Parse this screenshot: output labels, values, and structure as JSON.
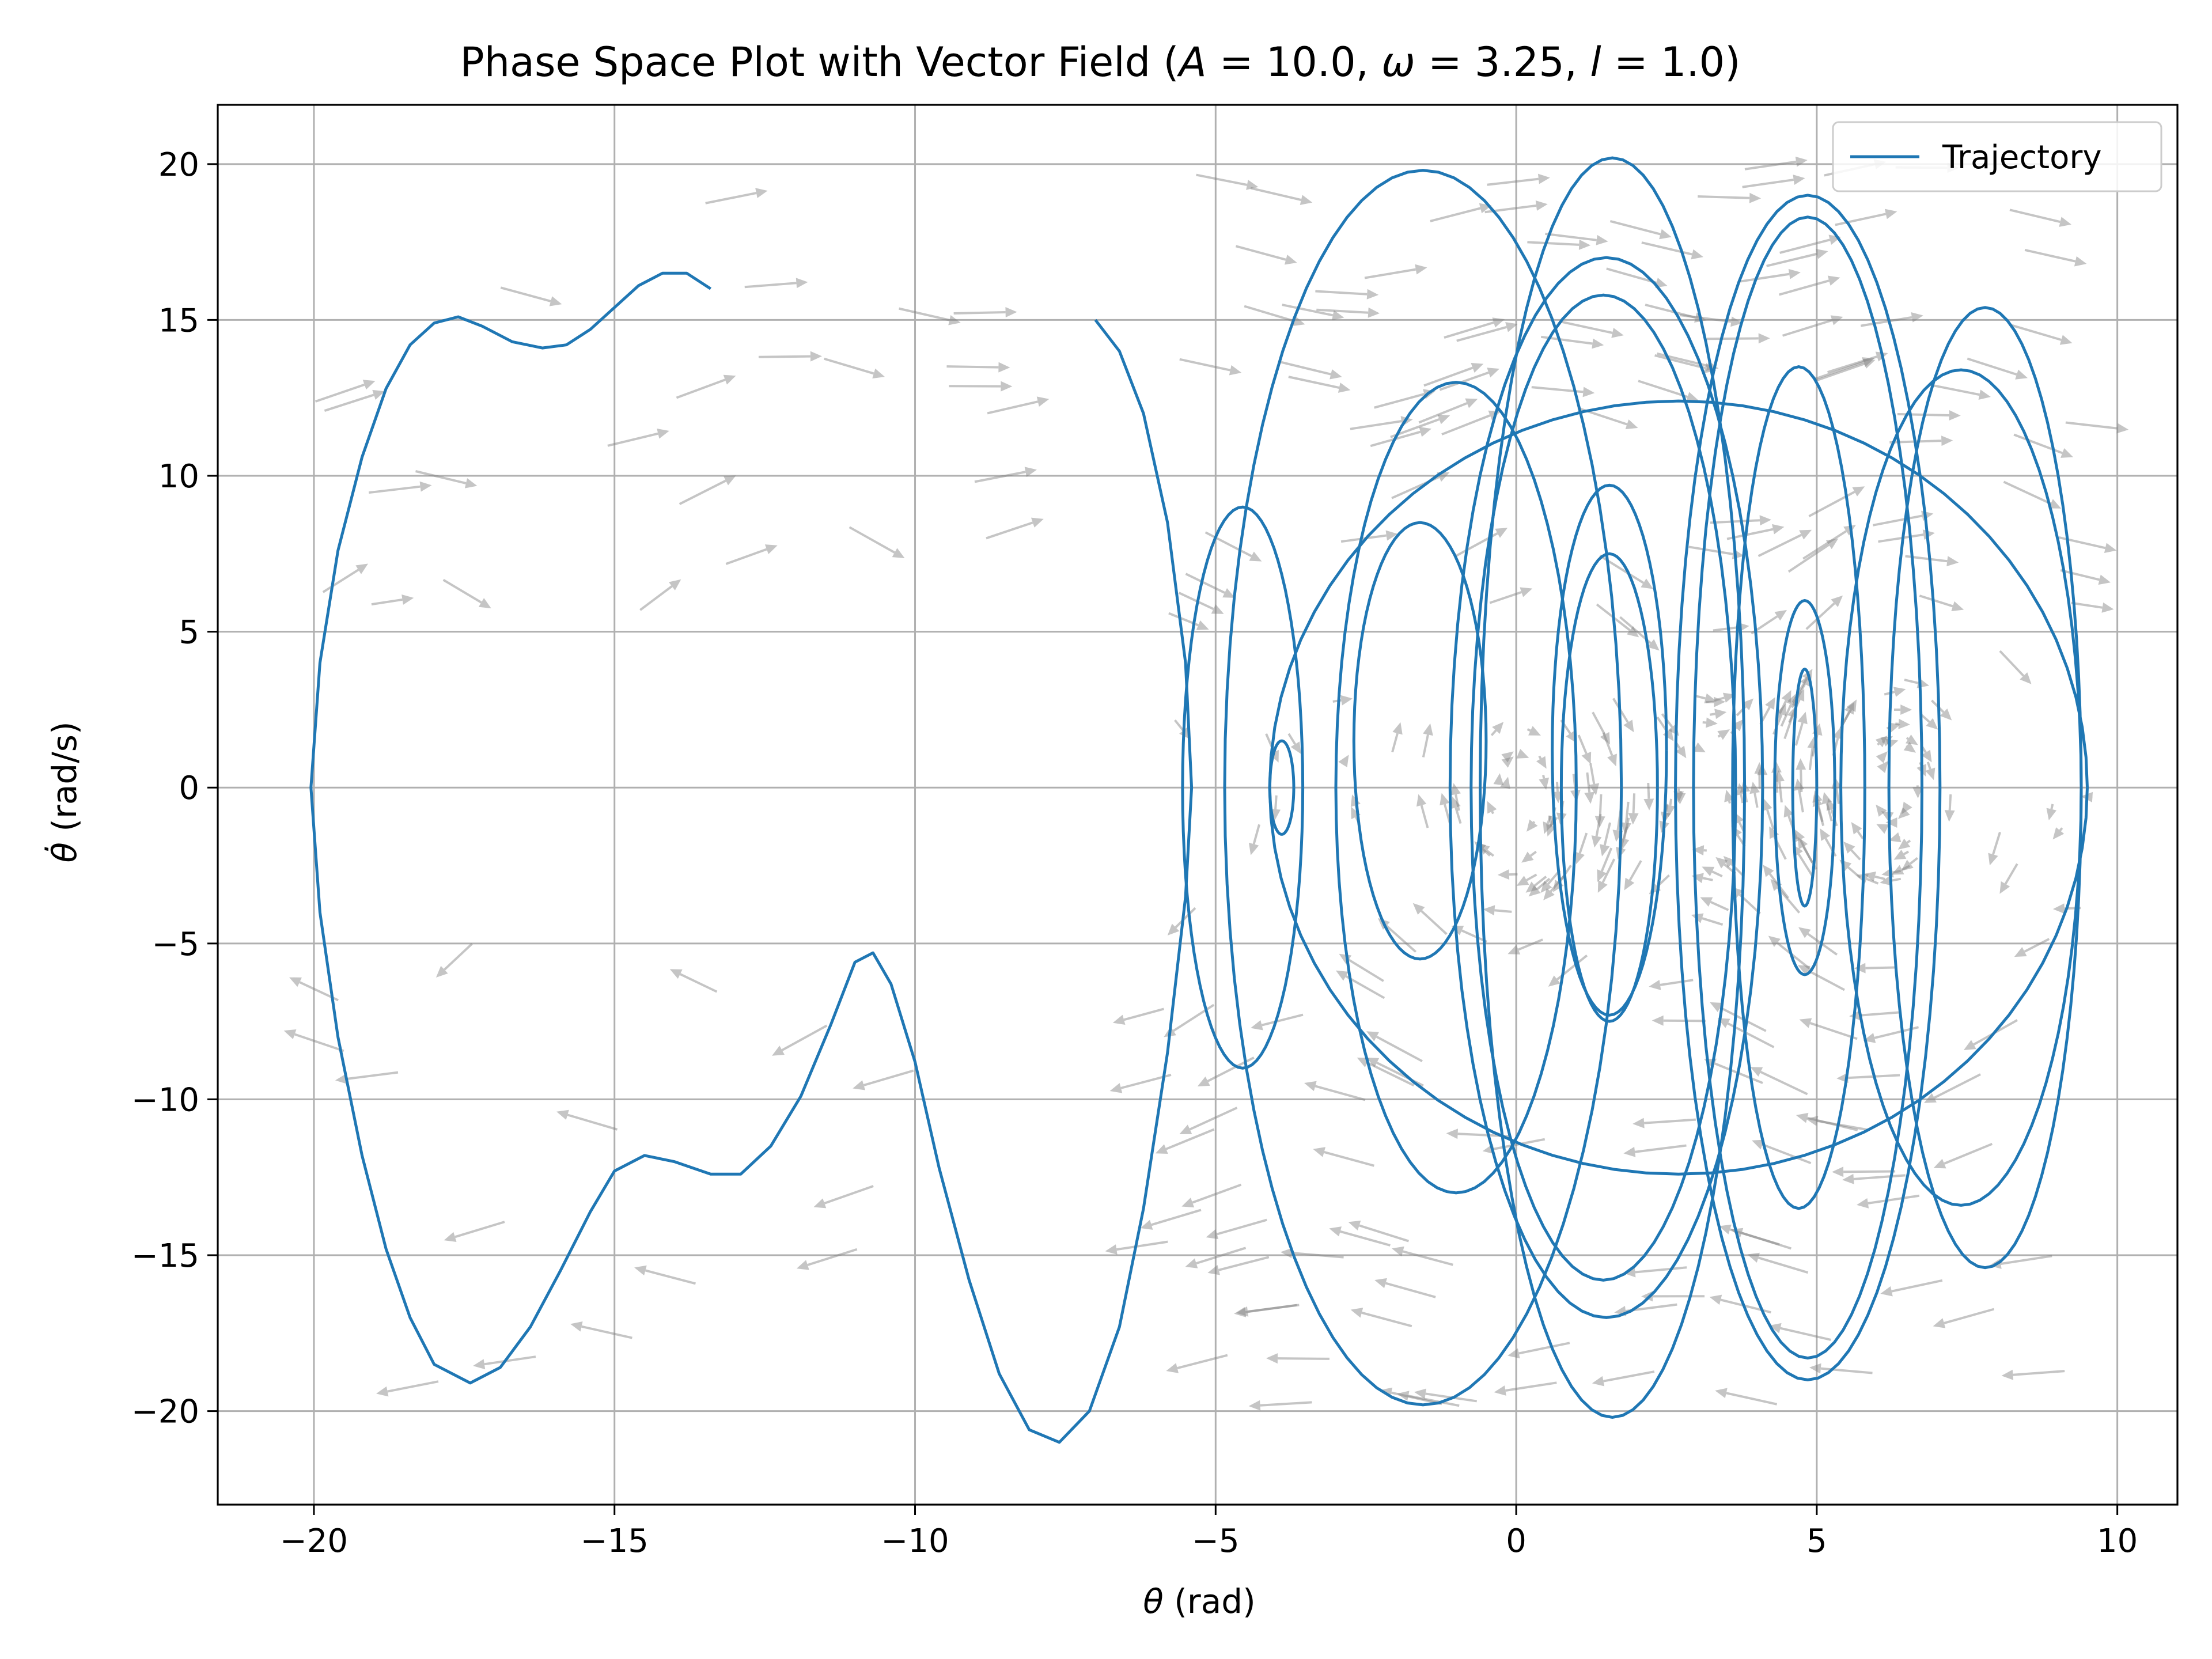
{
  "chart_data": {
    "type": "line",
    "title": "Phase Space Plot with Vector Field (A = 10.0, ω = 3.25, l = 1.0)",
    "title_parts": {
      "prefix": "Phase Space Plot with Vector Field (",
      "A_sym": "A",
      "A_val": " = 10.0, ",
      "w_sym": "ω",
      "w_val": " = 3.25, ",
      "l_sym": "l",
      "l_val": " = 1.0)"
    },
    "xlabel": "θ (rad)",
    "xlabel_parts": {
      "sym": "θ",
      "unit": " (rad)"
    },
    "ylabel": "θ̇ (rad/s)",
    "ylabel_parts": {
      "sym": "θ̇",
      "unit": " (rad/s)"
    },
    "xlim": [
      -21.6,
      11.0
    ],
    "ylim": [
      -23.0,
      21.9
    ],
    "xticks": [
      -20,
      -15,
      -10,
      -5,
      0,
      5,
      10
    ],
    "yticks": [
      -20,
      -15,
      -10,
      -5,
      0,
      5,
      10,
      15,
      20
    ],
    "xtick_labels": [
      "−20",
      "−15",
      "−10",
      "−5",
      "0",
      "5",
      "10"
    ],
    "ytick_labels": [
      "−20",
      "−15",
      "−10",
      "−5",
      "0",
      "5",
      "10",
      "15",
      "20"
    ],
    "grid": true,
    "legend": {
      "position": "top-right",
      "entries": [
        "Trajectory"
      ]
    },
    "colors": {
      "trajectory": "#1f77b4",
      "grid": "#b0b0b0",
      "arrows": "#808080"
    },
    "series": [
      {
        "name": "Trajectory",
        "points": [
          [
            -13.4,
            16.0
          ],
          [
            -13.8,
            16.5
          ],
          [
            -14.2,
            16.5
          ],
          [
            -14.6,
            16.1
          ],
          [
            -15.0,
            15.4
          ],
          [
            -15.4,
            14.7
          ],
          [
            -15.8,
            14.2
          ],
          [
            -16.2,
            14.1
          ],
          [
            -16.7,
            14.3
          ],
          [
            -17.2,
            14.8
          ],
          [
            -17.6,
            15.1
          ],
          [
            -18.0,
            14.9
          ],
          [
            -18.4,
            14.2
          ],
          [
            -18.8,
            12.8
          ],
          [
            -19.2,
            10.6
          ],
          [
            -19.6,
            7.6
          ],
          [
            -19.9,
            4.0
          ],
          [
            -20.05,
            0.0
          ],
          [
            -19.9,
            -4.0
          ],
          [
            -19.6,
            -8.0
          ],
          [
            -19.2,
            -11.8
          ],
          [
            -18.8,
            -14.8
          ],
          [
            -18.4,
            -17.0
          ],
          [
            -18.0,
            -18.5
          ],
          [
            -17.4,
            -19.1
          ],
          [
            -16.9,
            -18.6
          ],
          [
            -16.4,
            -17.3
          ],
          [
            -15.9,
            -15.5
          ],
          [
            -15.4,
            -13.6
          ],
          [
            -15.0,
            -12.3
          ],
          [
            -14.5,
            -11.8
          ],
          [
            -14.0,
            -12.0
          ],
          [
            -13.4,
            -12.4
          ],
          [
            -12.9,
            -12.4
          ],
          [
            -12.4,
            -11.5
          ],
          [
            -11.9,
            -9.9
          ],
          [
            -11.4,
            -7.6
          ],
          [
            -11.0,
            -5.6
          ],
          [
            -10.7,
            -5.3
          ],
          [
            -10.4,
            -6.3
          ],
          [
            -10.0,
            -8.8
          ],
          [
            -9.6,
            -12.2
          ],
          [
            -9.1,
            -15.8
          ],
          [
            -8.6,
            -18.8
          ],
          [
            -8.1,
            -20.6
          ],
          [
            -7.6,
            -21.0
          ],
          [
            -7.1,
            -20.0
          ],
          [
            -6.6,
            -17.3
          ],
          [
            -6.2,
            -13.5
          ],
          [
            -5.8,
            -8.5
          ],
          [
            -5.5,
            -3.5
          ],
          [
            -5.4,
            0.0
          ],
          [
            -5.5,
            4.0
          ],
          [
            -5.8,
            8.5
          ],
          [
            -6.2,
            12.0
          ],
          [
            -6.6,
            14.0
          ],
          [
            -7.0,
            15.0
          ]
        ]
      }
    ],
    "loops": [
      {
        "cx": -4.55,
        "cy": 0.0,
        "rx": 1.0,
        "ry": 9.0
      },
      {
        "cx": -3.9,
        "cy": 0.0,
        "rx": 0.2,
        "ry": 1.5
      },
      {
        "cx": -1.0,
        "cy": 0.0,
        "rx": 2.0,
        "ry": 13.0
      },
      {
        "cx": -1.55,
        "cy": 0.0,
        "rx": 3.3,
        "ry": 19.8
      },
      {
        "cx": -1.6,
        "cy": 1.5,
        "rx": 1.1,
        "ry": 7.0
      },
      {
        "cx": 1.5,
        "cy": 0.0,
        "rx": 2.6,
        "ry": 17.0
      },
      {
        "cx": 1.45,
        "cy": 0.0,
        "rx": 2.2,
        "ry": 15.8
      },
      {
        "cx": 1.55,
        "cy": 1.2,
        "rx": 0.95,
        "ry": 8.5
      },
      {
        "cx": 1.55,
        "cy": 0.0,
        "rx": 0.8,
        "ry": 7.5
      },
      {
        "cx": 1.6,
        "cy": 0.0,
        "rx": 2.2,
        "ry": 20.2
      },
      {
        "cx": 4.85,
        "cy": 0.0,
        "rx": 2.2,
        "ry": 19.0
      },
      {
        "cx": 4.85,
        "cy": 0.0,
        "rx": 1.9,
        "ry": 18.3
      },
      {
        "cx": 4.7,
        "cy": 0.0,
        "rx": 1.1,
        "ry": 13.5
      },
      {
        "cx": 4.8,
        "cy": 0.0,
        "rx": 0.5,
        "ry": 6.0
      },
      {
        "cx": 4.8,
        "cy": 0.0,
        "rx": 0.2,
        "ry": 3.8
      },
      {
        "cx": 7.8,
        "cy": 0.0,
        "rx": 1.6,
        "ry": 15.4
      },
      {
        "cx": 7.4,
        "cy": 0.0,
        "rx": 2.0,
        "ry": 13.4
      },
      {
        "cx": 2.7,
        "cy": 0.0,
        "rx": 6.8,
        "ry": 12.4
      }
    ]
  }
}
